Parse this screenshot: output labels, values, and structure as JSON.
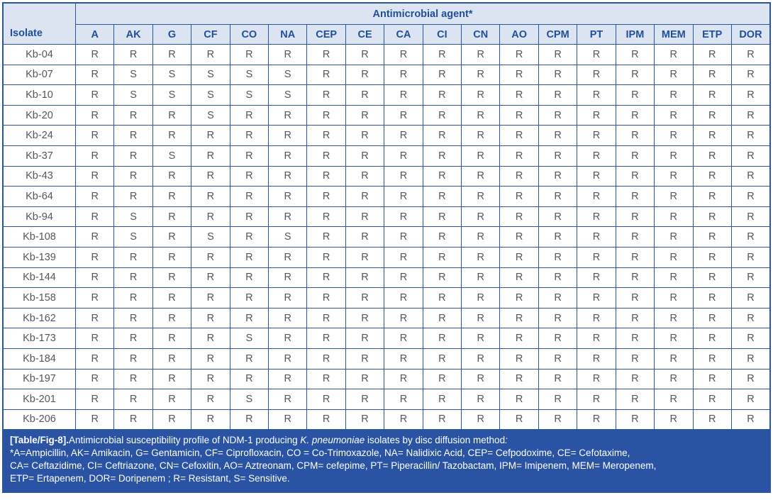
{
  "table": {
    "band_header": "Antimicrobial agent*",
    "isolate_header": "Isolate",
    "agents": [
      "A",
      "AK",
      "G",
      "CF",
      "CO",
      "NA",
      "CEP",
      "CE",
      "CA",
      "CI",
      "CN",
      "AO",
      "CPM",
      "PT",
      "IPM",
      "MEM",
      "ETP",
      "DOR"
    ],
    "rows": [
      {
        "isolate": "Kb-04",
        "values": [
          "R",
          "R",
          "R",
          "R",
          "R",
          "R",
          "R",
          "R",
          "R",
          "R",
          "R",
          "R",
          "R",
          "R",
          "R",
          "R",
          "R",
          "R"
        ]
      },
      {
        "isolate": "Kb-07",
        "values": [
          "R",
          "S",
          "S",
          "S",
          "S",
          "S",
          "R",
          "R",
          "R",
          "R",
          "R",
          "R",
          "R",
          "R",
          "R",
          "R",
          "R",
          "R"
        ]
      },
      {
        "isolate": "Kb-10",
        "values": [
          "R",
          "S",
          "S",
          "S",
          "S",
          "S",
          "R",
          "R",
          "R",
          "R",
          "R",
          "R",
          "R",
          "R",
          "R",
          "R",
          "R",
          "R"
        ]
      },
      {
        "isolate": "Kb-20",
        "values": [
          "R",
          "R",
          "R",
          "S",
          "R",
          "R",
          "R",
          "R",
          "R",
          "R",
          "R",
          "R",
          "R",
          "R",
          "R",
          "R",
          "R",
          "R"
        ]
      },
      {
        "isolate": "Kb-24",
        "values": [
          "R",
          "R",
          "R",
          "R",
          "R",
          "R",
          "R",
          "R",
          "R",
          "R",
          "R",
          "R",
          "R",
          "R",
          "R",
          "R",
          "R",
          "R"
        ]
      },
      {
        "isolate": "Kb-37",
        "values": [
          "R",
          "R",
          "S",
          "R",
          "R",
          "R",
          "R",
          "R",
          "R",
          "R",
          "R",
          "R",
          "R",
          "R",
          "R",
          "R",
          "R",
          "R"
        ]
      },
      {
        "isolate": "Kb-43",
        "values": [
          "R",
          "R",
          "R",
          "R",
          "R",
          "R",
          "R",
          "R",
          "R",
          "R",
          "R",
          "R",
          "R",
          "R",
          "R",
          "R",
          "R",
          "R"
        ]
      },
      {
        "isolate": "Kb-64",
        "values": [
          "R",
          "R",
          "R",
          "R",
          "R",
          "R",
          "R",
          "R",
          "R",
          "R",
          "R",
          "R",
          "R",
          "R",
          "R",
          "R",
          "R",
          "R"
        ]
      },
      {
        "isolate": "Kb-94",
        "values": [
          "R",
          "S",
          "R",
          "R",
          "R",
          "R",
          "R",
          "R",
          "R",
          "R",
          "R",
          "R",
          "R",
          "R",
          "R",
          "R",
          "R",
          "R"
        ]
      },
      {
        "isolate": "Kb-108",
        "values": [
          "R",
          "S",
          "R",
          "S",
          "R",
          "S",
          "R",
          "R",
          "R",
          "R",
          "R",
          "R",
          "R",
          "R",
          "R",
          "R",
          "R",
          "R"
        ]
      },
      {
        "isolate": "Kb-139",
        "values": [
          "R",
          "R",
          "R",
          "R",
          "R",
          "R",
          "R",
          "R",
          "R",
          "R",
          "R",
          "R",
          "R",
          "R",
          "R",
          "R",
          "R",
          "R"
        ]
      },
      {
        "isolate": "Kb-144",
        "values": [
          "R",
          "R",
          "R",
          "R",
          "R",
          "R",
          "R",
          "R",
          "R",
          "R",
          "R",
          "R",
          "R",
          "R",
          "R",
          "R",
          "R",
          "R"
        ]
      },
      {
        "isolate": "Kb-158",
        "values": [
          "R",
          "R",
          "R",
          "R",
          "R",
          "R",
          "R",
          "R",
          "R",
          "R",
          "R",
          "R",
          "R",
          "R",
          "R",
          "R",
          "R",
          "R"
        ]
      },
      {
        "isolate": "Kb-162",
        "values": [
          "R",
          "R",
          "R",
          "R",
          "R",
          "R",
          "R",
          "R",
          "R",
          "R",
          "R",
          "R",
          "R",
          "R",
          "R",
          "R",
          "R",
          "R"
        ]
      },
      {
        "isolate": "Kb-173",
        "values": [
          "R",
          "R",
          "R",
          "R",
          "S",
          "R",
          "R",
          "R",
          "R",
          "R",
          "R",
          "R",
          "R",
          "R",
          "R",
          "R",
          "R",
          "R"
        ]
      },
      {
        "isolate": "Kb-184",
        "values": [
          "R",
          "R",
          "R",
          "R",
          "R",
          "R",
          "R",
          "R",
          "R",
          "R",
          "R",
          "R",
          "R",
          "R",
          "R",
          "R",
          "R",
          "R"
        ]
      },
      {
        "isolate": "Kb-197",
        "values": [
          "R",
          "R",
          "R",
          "R",
          "R",
          "R",
          "R",
          "R",
          "R",
          "R",
          "R",
          "R",
          "R",
          "R",
          "R",
          "R",
          "R",
          "R"
        ]
      },
      {
        "isolate": "Kb-201",
        "values": [
          "R",
          "R",
          "R",
          "R",
          "S",
          "R",
          "R",
          "R",
          "R",
          "R",
          "R",
          "R",
          "R",
          "R",
          "R",
          "R",
          "R",
          "R"
        ]
      },
      {
        "isolate": "Kb-206",
        "values": [
          "R",
          "R",
          "R",
          "R",
          "R",
          "R",
          "R",
          "R",
          "R",
          "R",
          "R",
          "R",
          "R",
          "R",
          "R",
          "R",
          "R",
          "R"
        ]
      }
    ]
  },
  "footer": {
    "caption_label": "[Table/Fig-8].",
    "caption_text_1": "Antimicrobial susceptibility profile of NDM-1 producing ",
    "caption_species": "K. pneumoniae",
    "caption_text_2": " isolates by disc diffusion method",
    "caption_colon": ":",
    "note_lines": [
      "*A=Ampicillin, AK= Amikacin, G= Gentamicin, CF= Ciprofloxacin, CO = Co-Trimoxazole, NA= Nalidixic Acid, CEP= Cefpodoxime, CE= Cefotaxime,",
      "CA= Ceftazidime, CI= Ceftriazone, CN= Cefoxitin, AO= Aztreonam, CPM= cefepime, PT= Piperacillin/ Tazobactam, IPM= Imipenem, MEM= Meropenem,",
      "ETP= Ertapenem, DOR= Doripenem ; R= Resistant, S= Sensitive."
    ]
  },
  "colors": {
    "grid_border": "#2b55a0",
    "header_background": "#dce4f1",
    "header_text": "#1f4e9c",
    "cell_text": "#54565c",
    "caption_background": "#2a53a3",
    "caption_text": "#ffffff"
  }
}
